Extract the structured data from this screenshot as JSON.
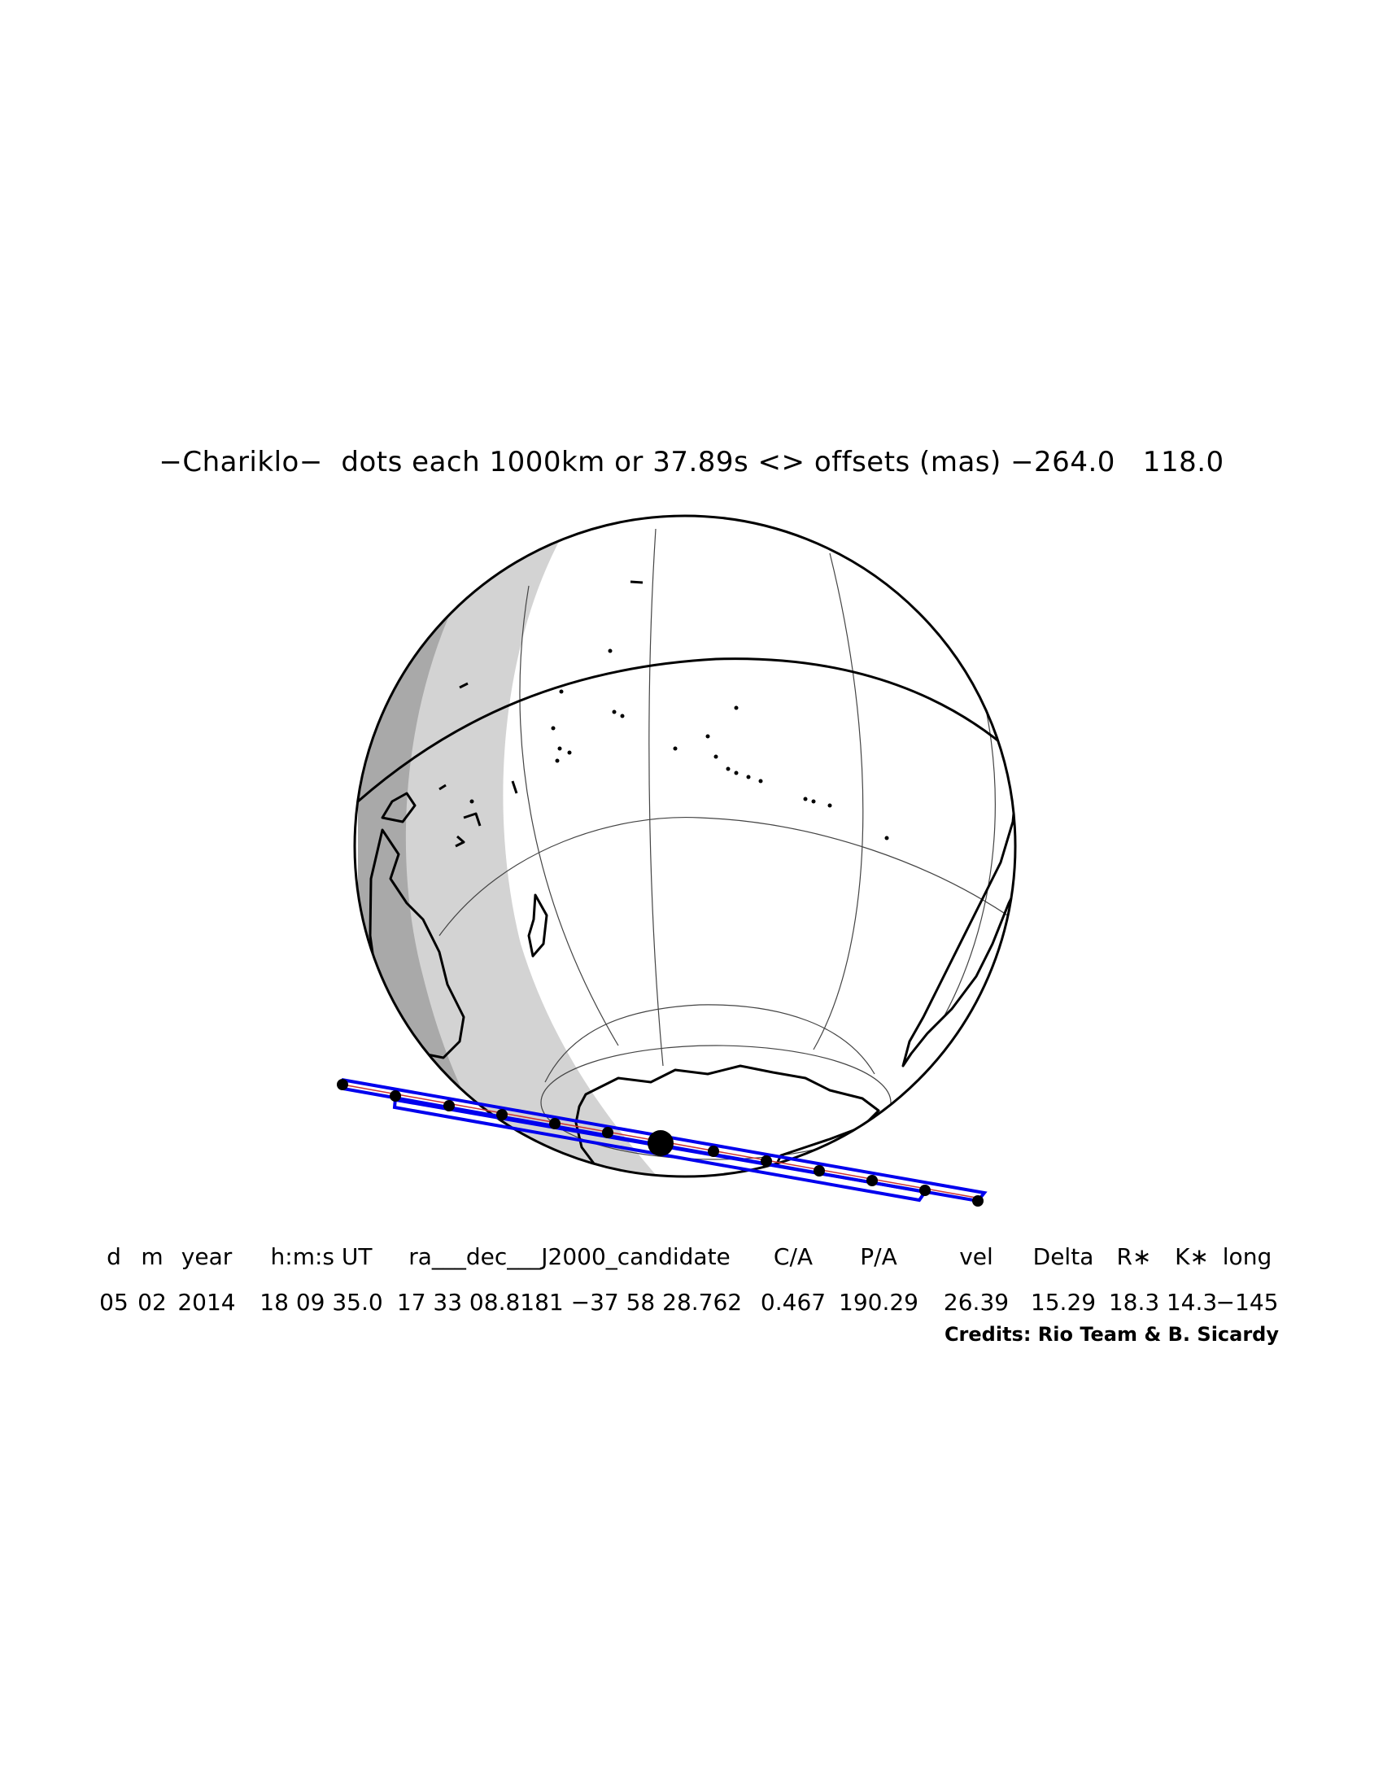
{
  "title": "−Chariklo−  dots each 1000km or 37.89s <> offsets (mas) −264.0   118.0",
  "table": {
    "headers": [
      "d",
      "m",
      "year",
      "h:m:s UT",
      "ra___dec___J2000_candidate",
      "C/A",
      "P/A",
      "vel",
      "Delta",
      "R∗",
      "K∗",
      "long"
    ],
    "values": [
      "05",
      "02",
      "2014",
      "18 09 35.0",
      "17 33 08.8181  −37 58 28.762",
      "0.467",
      "190.29",
      "26.39",
      "15.29",
      "18.3",
      "14.3",
      "−145"
    ]
  },
  "credits": "Credits: Rio Team & B. Sicardy",
  "colors": {
    "path": "#0000ee",
    "centerline": "#cc3333",
    "twilight": "#d3d3d3",
    "night": "#a9a9a9",
    "coast": "#000000"
  }
}
